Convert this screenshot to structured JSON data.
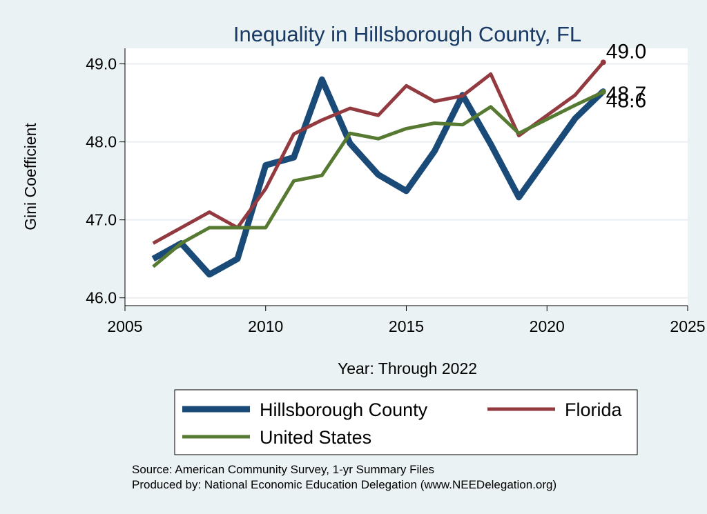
{
  "chart_data": {
    "type": "line",
    "title": "Inequality in Hillsborough County, FL",
    "xlabel": "Year: Through 2022",
    "ylabel": "Gini Coefficient",
    "xlim": [
      2005,
      2025
    ],
    "ylim": [
      45.9,
      49.2
    ],
    "xticks": [
      2005,
      2010,
      2015,
      2020,
      2025
    ],
    "yticks": [
      46.0,
      47.0,
      48.0,
      49.0
    ],
    "ytick_labels": [
      "46.0",
      "47.0",
      "48.0",
      "49.0"
    ],
    "grid": true,
    "x": [
      2006,
      2007,
      2008,
      2009,
      2010,
      2011,
      2012,
      2013,
      2014,
      2015,
      2016,
      2017,
      2018,
      2019,
      2021,
      2022
    ],
    "series": [
      {
        "name": "Hillsborough County",
        "color": "#1a4a77",
        "values": [
          46.5,
          46.7,
          46.3,
          46.5,
          47.7,
          47.8,
          48.8,
          47.98,
          47.58,
          47.37,
          47.88,
          48.6,
          47.97,
          47.29,
          48.3,
          48.65
        ],
        "end_label": "48.7"
      },
      {
        "name": "Florida",
        "color": "#923a3f",
        "values": [
          46.7,
          46.9,
          47.1,
          46.9,
          47.4,
          48.1,
          48.28,
          48.43,
          48.34,
          48.72,
          48.52,
          48.59,
          48.87,
          48.08,
          48.6,
          49.02
        ],
        "end_label": "49.0"
      },
      {
        "name": "United States",
        "color": "#577a32",
        "values": [
          46.4,
          46.7,
          46.9,
          46.9,
          46.9,
          47.5,
          47.57,
          48.11,
          48.04,
          48.17,
          48.24,
          48.22,
          48.45,
          48.11,
          48.47,
          48.64
        ],
        "end_label": "48.6"
      }
    ],
    "legend": {
      "position": "bottom",
      "items": [
        "Hillsborough County",
        "Florida",
        "United States"
      ]
    }
  },
  "notes": {
    "source": "Source: American Community Survey, 1-yr Summary Files",
    "produced_by": "Produced by: National Economic Education Delegation (www.NEEDelegation.org)"
  }
}
